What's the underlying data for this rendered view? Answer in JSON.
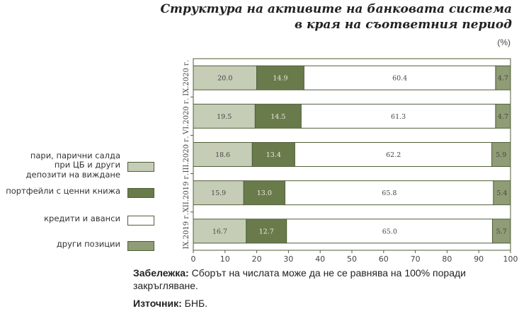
{
  "chart_data": {
    "type": "bar",
    "orientation": "horizontal-stacked",
    "title": "Структура на активите на банковата система в края на съответния период",
    "title_lines": [
      "Структура на активите на банковата система",
      "в края на съответния период"
    ],
    "unit": "(%)",
    "categories": [
      "IX.2020 г.",
      "VI.2020 г.",
      "III.2020 г.",
      "XII.2019 г.",
      "IX.2019 г."
    ],
    "series": [
      {
        "name": "пари, парични салда при ЦБ и други депозити на виждане",
        "color": "#c6cdb7",
        "values": [
          20.0,
          19.5,
          18.6,
          15.9,
          16.7
        ]
      },
      {
        "name": "портфейли с ценни книжа",
        "color": "#6a7b4b",
        "values": [
          14.9,
          14.5,
          13.4,
          13.0,
          12.7
        ]
      },
      {
        "name": "кредити и аванси",
        "color": "#ffffff",
        "values": [
          60.4,
          61.3,
          62.2,
          65.8,
          65.0
        ]
      },
      {
        "name": "други позиции",
        "color": "#8f9c75",
        "values": [
          4.7,
          4.7,
          5.9,
          5.4,
          5.7
        ]
      }
    ],
    "legend_lines": [
      [
        "пари, парични салда",
        "при ЦБ и други",
        "депозити на виждане"
      ],
      [
        "портфейли с ценни книжа"
      ],
      [
        "кредити и аванси"
      ],
      [
        "други позиции"
      ]
    ],
    "xlim": [
      0,
      100
    ],
    "xticks": [
      0,
      10,
      20,
      30,
      40,
      50,
      60,
      70,
      80,
      90,
      100
    ],
    "legend_position": "left"
  },
  "note": {
    "label": "Забележка:",
    "text": " Сборът на числата може да не се равнява на 100% поради закръгляване."
  },
  "source": {
    "label": "Източник:",
    "text": " БНБ."
  }
}
